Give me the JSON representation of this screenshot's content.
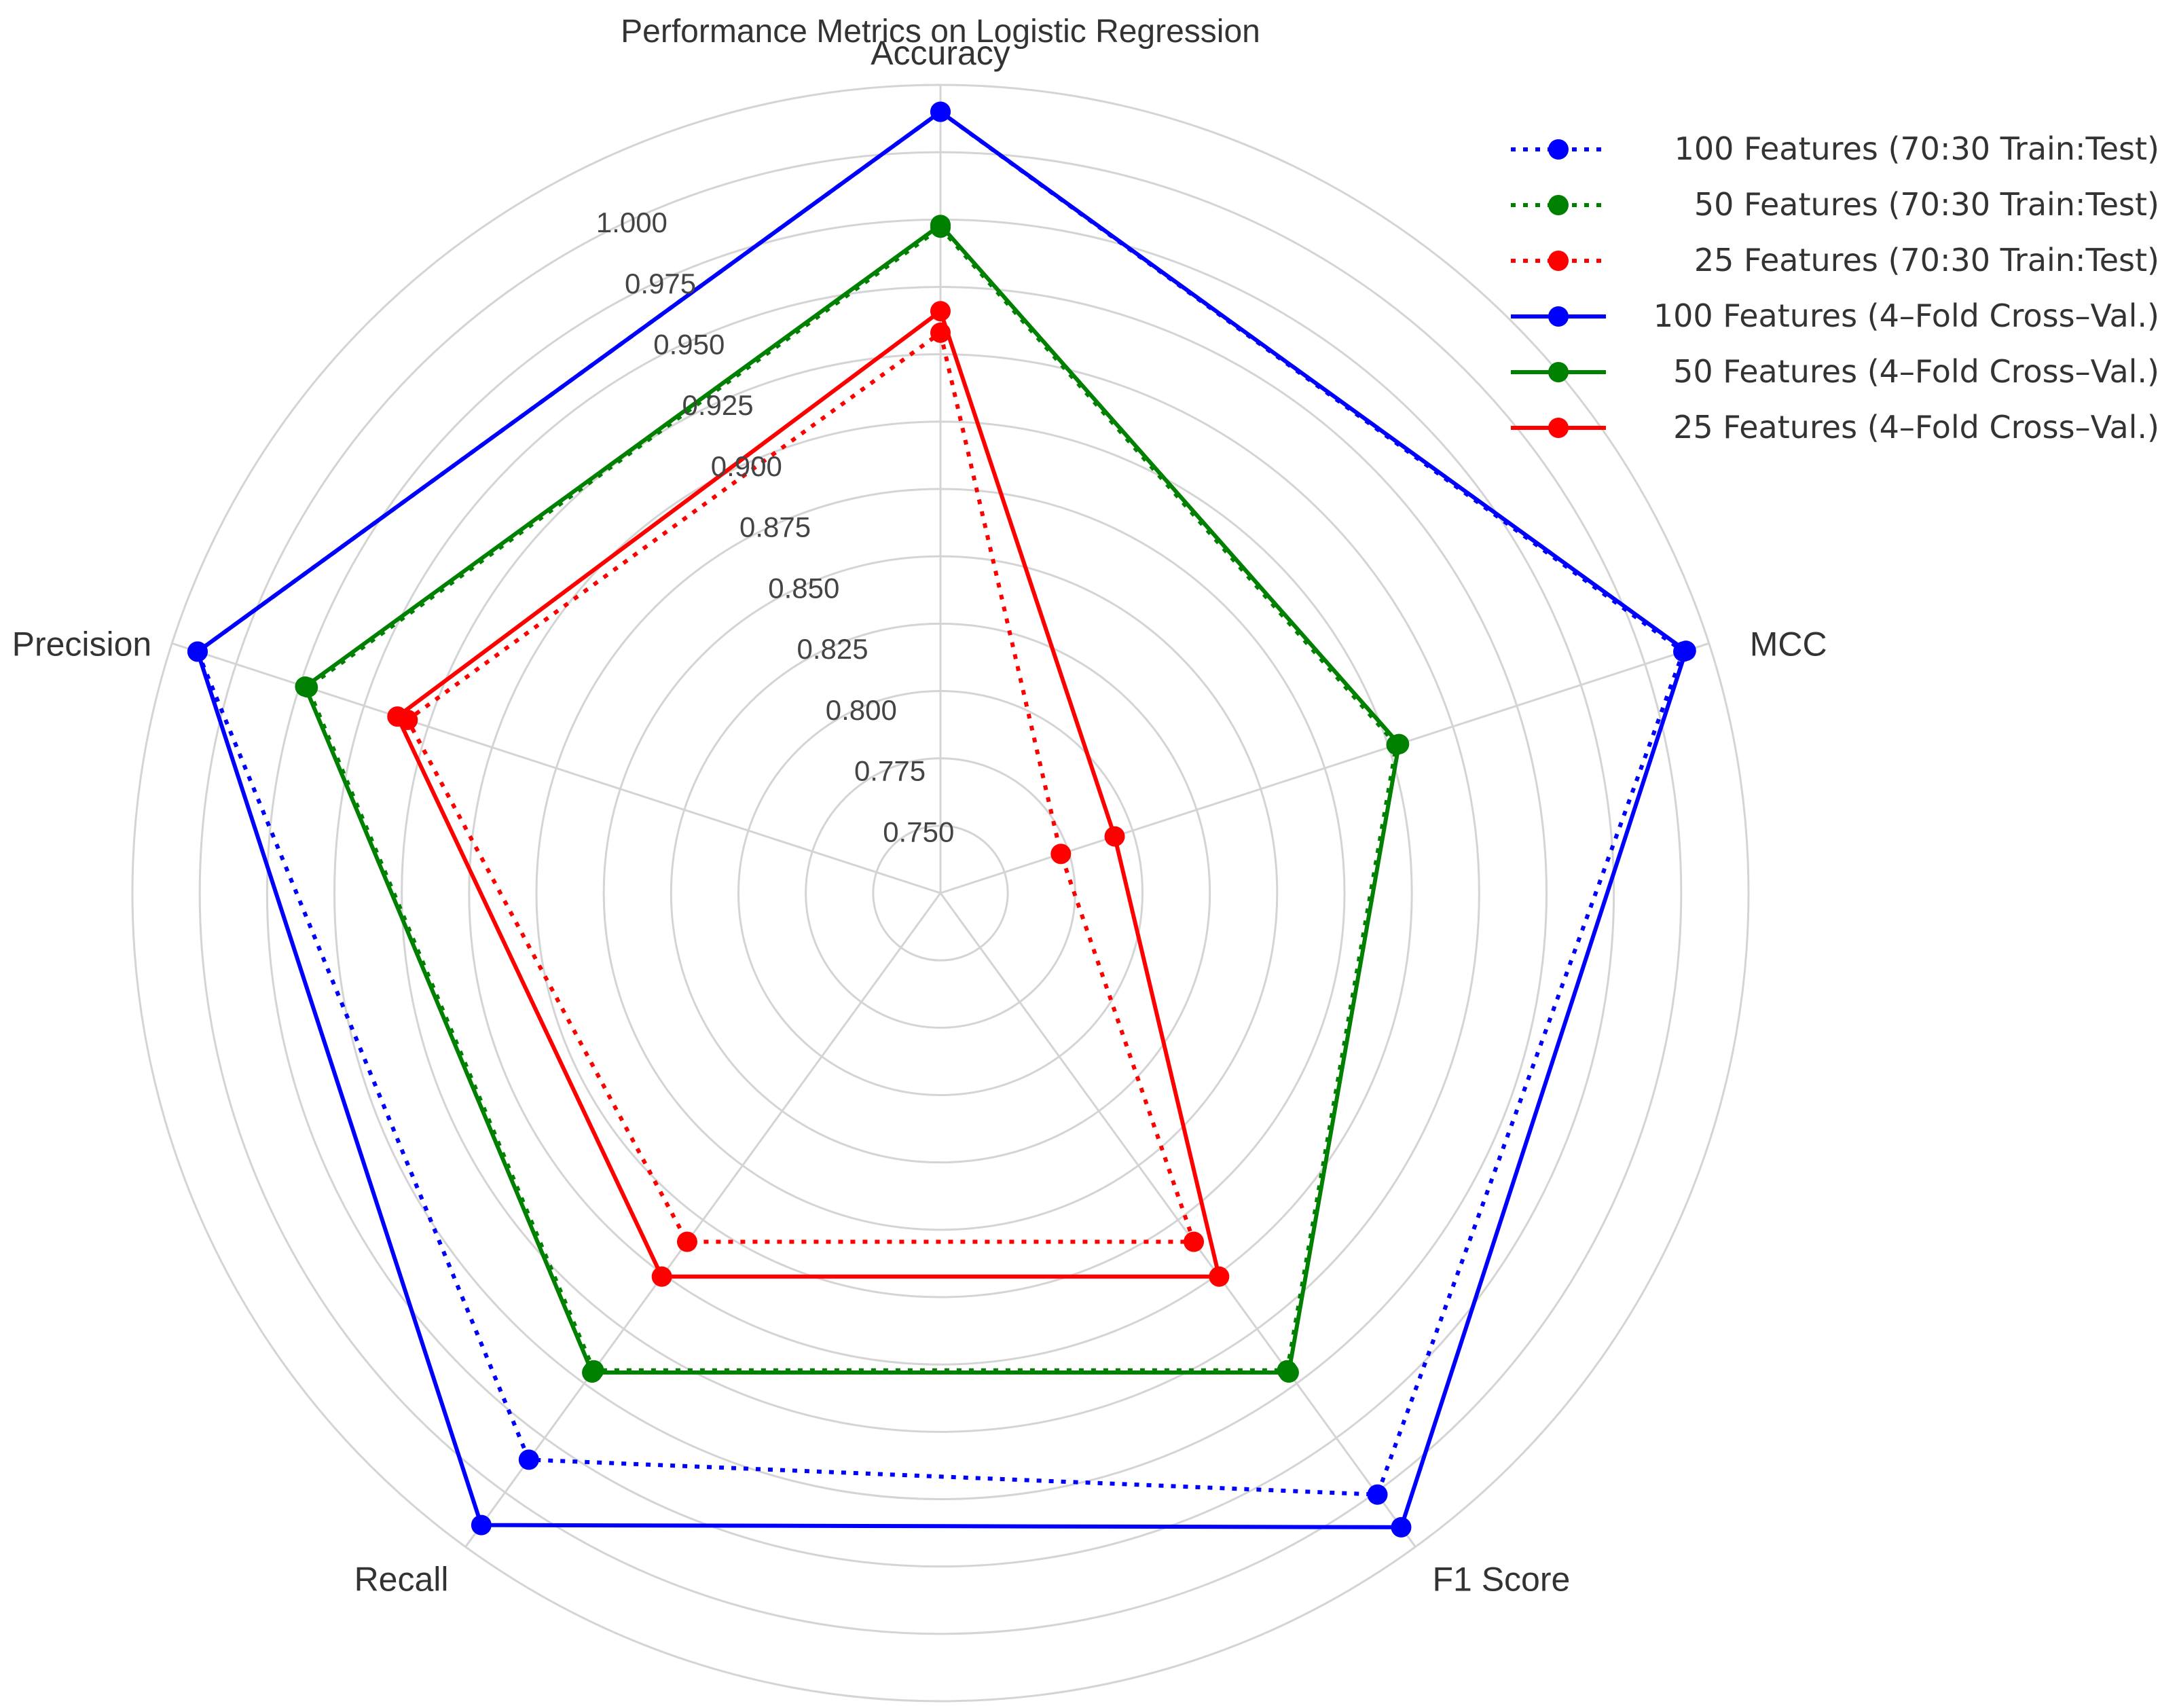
{
  "chart_data": {
    "type": "radar",
    "title": "Performance Metrics on Logistic Regression",
    "axes": [
      "Accuracy",
      "MCC",
      "F1 Score",
      "Recall",
      "Precision"
    ],
    "radial_range": [
      0.725,
      1.025
    ],
    "radial_ticks": [
      0.75,
      0.775,
      0.8,
      0.825,
      0.85,
      0.875,
      0.9,
      0.925,
      0.95,
      0.975,
      1.0
    ],
    "radial_tick_labels": [
      "0.750",
      "0.775",
      "0.800",
      "0.825",
      "0.850",
      "0.875",
      "0.900",
      "0.925",
      "0.950",
      "0.975",
      "1.000"
    ],
    "grid": true,
    "legend_position": "top-right",
    "series": [
      {
        "name": "100 Features (70:30  Train:Test)",
        "color": "#0000ff",
        "style": "dotted",
        "values": [
          1.015,
          1.015,
          1.001,
          0.985,
          1.015
        ]
      },
      {
        "name": "50 Features (70:30  Train:Test)",
        "color": "#008000",
        "style": "dotted",
        "values": [
          0.972,
          0.903,
          0.944,
          0.944,
          0.972
        ]
      },
      {
        "name": "25 Features (70:30  Train:Test)",
        "color": "#ff0000",
        "style": "dotted",
        "values": [
          0.933,
          0.772,
          0.885,
          0.885,
          0.933
        ]
      },
      {
        "name": "100 Features (4–Fold Cross–Val.)",
        "color": "#0000ff",
        "style": "solid",
        "values": [
          1.015,
          1.016,
          1.016,
          1.015,
          1.015
        ]
      },
      {
        "name": "50 Features (4–Fold Cross–Val.)",
        "color": "#008000",
        "style": "solid",
        "values": [
          0.973,
          0.904,
          0.945,
          0.945,
          0.973
        ]
      },
      {
        "name": "25 Features (4–Fold Cross–Val.)",
        "color": "#ff0000",
        "style": "solid",
        "values": [
          0.941,
          0.793,
          0.901,
          0.901,
          0.937
        ]
      }
    ]
  }
}
